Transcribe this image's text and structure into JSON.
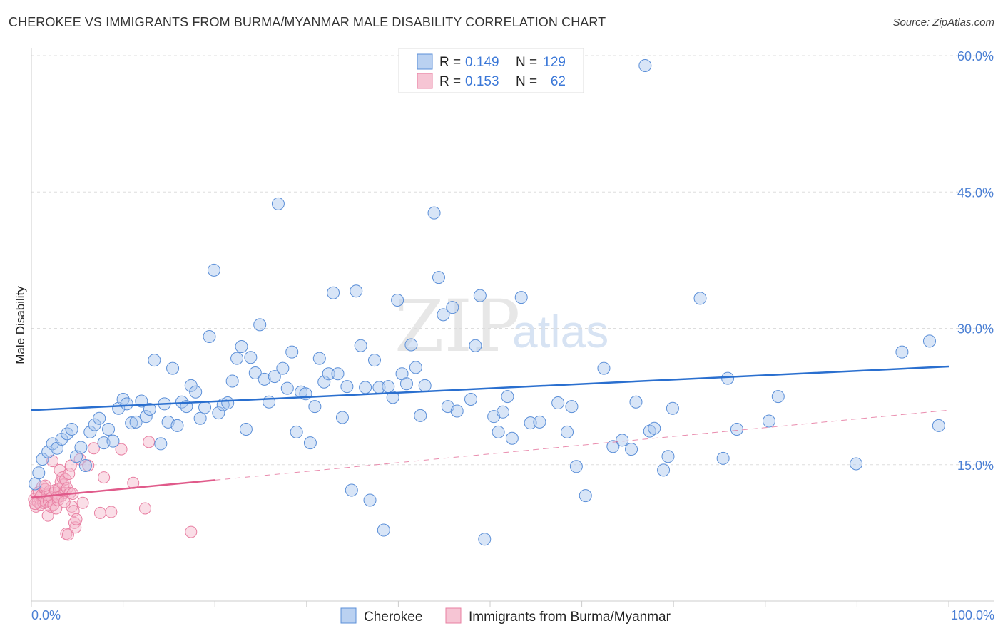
{
  "title": "CHEROKEE VS IMMIGRANTS FROM BURMA/MYANMAR MALE DISABILITY CORRELATION CHART",
  "source": "Source: ZipAtlas.com",
  "watermark": {
    "zip": "ZIP",
    "atlas": "atlas"
  },
  "colors": {
    "blue_fill": "#a9c6ee",
    "blue_stroke": "#5b8fd8",
    "blue_line": "#2a6fcf",
    "pink_fill": "#f4b6c9",
    "pink_stroke": "#e87fa2",
    "pink_line": "#e05a8a",
    "grid": "#dddddd",
    "axis_text": "#4a7fd4"
  },
  "legend": {
    "rows": [
      {
        "r_label": "R =",
        "r_value": "0.149",
        "n_label": "N =",
        "n_value": "129"
      },
      {
        "r_label": "R =",
        "r_value": "0.153",
        "n_label": "N =",
        "n_value": "62"
      }
    ]
  },
  "chart_data": {
    "type": "scatter",
    "title": "CHEROKEE VS IMMIGRANTS FROM BURMA/MYANMAR MALE DISABILITY CORRELATION CHART",
    "xlabel": "",
    "ylabel": "Male Disability",
    "xlim": [
      0,
      100
    ],
    "ylim": [
      0,
      62
    ],
    "x_tick_labels": [
      "0.0%",
      "100.0%"
    ],
    "y_ticks": [
      15,
      30,
      45,
      60
    ],
    "y_tick_labels": [
      "15.0%",
      "30.0%",
      "45.0%",
      "60.0%"
    ],
    "grid": true,
    "legend_position": "top-center",
    "series": [
      {
        "name": "Cherokee",
        "R": 0.149,
        "N": 129,
        "trend": {
          "x": [
            0,
            100
          ],
          "y": [
            21.0,
            25.8
          ]
        },
        "points": [
          [
            0.4,
            12.9
          ],
          [
            0.8,
            14.1
          ],
          [
            1.2,
            15.6
          ],
          [
            1.8,
            16.4
          ],
          [
            2.3,
            17.3
          ],
          [
            2.8,
            16.8
          ],
          [
            3.3,
            17.8
          ],
          [
            3.9,
            18.4
          ],
          [
            4.4,
            18.9
          ],
          [
            4.9,
            15.9
          ],
          [
            5.4,
            16.9
          ],
          [
            5.9,
            14.9
          ],
          [
            6.4,
            18.6
          ],
          [
            6.9,
            19.4
          ],
          [
            7.4,
            20.1
          ],
          [
            7.9,
            17.4
          ],
          [
            8.4,
            18.9
          ],
          [
            8.9,
            17.6
          ],
          [
            9.5,
            21.2
          ],
          [
            10.0,
            22.2
          ],
          [
            10.4,
            21.7
          ],
          [
            10.9,
            19.6
          ],
          [
            11.4,
            19.7
          ],
          [
            12.0,
            22.0
          ],
          [
            12.5,
            20.3
          ],
          [
            12.9,
            21.1
          ],
          [
            13.4,
            26.5
          ],
          [
            14.1,
            17.3
          ],
          [
            14.5,
            21.7
          ],
          [
            14.9,
            19.7
          ],
          [
            15.4,
            25.6
          ],
          [
            15.9,
            19.3
          ],
          [
            16.4,
            21.9
          ],
          [
            16.9,
            21.4
          ],
          [
            17.4,
            23.7
          ],
          [
            17.9,
            23.0
          ],
          [
            18.4,
            20.1
          ],
          [
            18.9,
            21.3
          ],
          [
            19.4,
            29.1
          ],
          [
            19.9,
            36.4
          ],
          [
            20.4,
            20.7
          ],
          [
            20.9,
            21.6
          ],
          [
            21.4,
            21.8
          ],
          [
            21.9,
            24.2
          ],
          [
            22.4,
            26.7
          ],
          [
            22.9,
            28.0
          ],
          [
            23.4,
            18.9
          ],
          [
            23.9,
            26.8
          ],
          [
            24.4,
            25.1
          ],
          [
            24.9,
            30.4
          ],
          [
            25.4,
            24.4
          ],
          [
            25.9,
            21.9
          ],
          [
            26.5,
            24.7
          ],
          [
            26.9,
            43.7
          ],
          [
            27.4,
            25.6
          ],
          [
            27.9,
            23.4
          ],
          [
            28.4,
            27.4
          ],
          [
            28.9,
            18.6
          ],
          [
            29.4,
            23.0
          ],
          [
            29.9,
            22.8
          ],
          [
            30.4,
            17.4
          ],
          [
            30.9,
            21.4
          ],
          [
            31.4,
            26.7
          ],
          [
            31.9,
            24.1
          ],
          [
            32.4,
            25.0
          ],
          [
            32.9,
            33.9
          ],
          [
            33.4,
            25.0
          ],
          [
            33.9,
            20.2
          ],
          [
            34.4,
            23.6
          ],
          [
            34.9,
            12.2
          ],
          [
            35.4,
            34.1
          ],
          [
            35.9,
            28.1
          ],
          [
            36.4,
            23.5
          ],
          [
            36.9,
            11.1
          ],
          [
            37.4,
            26.5
          ],
          [
            37.9,
            23.5
          ],
          [
            38.4,
            7.8
          ],
          [
            38.9,
            23.6
          ],
          [
            39.4,
            22.4
          ],
          [
            39.9,
            33.1
          ],
          [
            40.4,
            25.0
          ],
          [
            40.9,
            23.9
          ],
          [
            41.4,
            28.2
          ],
          [
            41.9,
            25.7
          ],
          [
            42.4,
            20.4
          ],
          [
            42.9,
            23.7
          ],
          [
            43.9,
            42.7
          ],
          [
            44.4,
            35.6
          ],
          [
            44.9,
            31.5
          ],
          [
            45.4,
            21.4
          ],
          [
            45.9,
            32.3
          ],
          [
            46.4,
            20.9
          ],
          [
            47.9,
            22.2
          ],
          [
            48.4,
            28.1
          ],
          [
            48.9,
            33.6
          ],
          [
            49.4,
            6.8
          ],
          [
            50.4,
            20.3
          ],
          [
            50.9,
            18.6
          ],
          [
            51.4,
            20.8
          ],
          [
            51.9,
            22.5
          ],
          [
            52.4,
            17.9
          ],
          [
            53.4,
            33.4
          ],
          [
            54.4,
            19.6
          ],
          [
            55.4,
            19.7
          ],
          [
            57.4,
            21.8
          ],
          [
            58.4,
            18.6
          ],
          [
            58.9,
            21.4
          ],
          [
            59.4,
            14.8
          ],
          [
            60.4,
            11.6
          ],
          [
            62.4,
            25.6
          ],
          [
            63.4,
            17.0
          ],
          [
            64.4,
            17.7
          ],
          [
            65.4,
            16.7
          ],
          [
            65.9,
            21.9
          ],
          [
            66.9,
            58.9
          ],
          [
            67.4,
            18.7
          ],
          [
            67.9,
            19.0
          ],
          [
            68.9,
            14.4
          ],
          [
            69.4,
            15.9
          ],
          [
            69.9,
            21.2
          ],
          [
            72.9,
            33.3
          ],
          [
            75.4,
            15.7
          ],
          [
            75.9,
            24.5
          ],
          [
            76.9,
            18.9
          ],
          [
            80.4,
            19.8
          ],
          [
            81.4,
            22.5
          ],
          [
            89.9,
            15.1
          ],
          [
            94.9,
            27.4
          ],
          [
            97.9,
            28.6
          ],
          [
            98.9,
            19.3
          ]
        ]
      },
      {
        "name": "Immigrants from Burma/Myanmar",
        "R": 0.153,
        "N": 62,
        "trend": {
          "x": [
            0,
            20
          ],
          "y": [
            11.4,
            13.3
          ],
          "dashed_extension": {
            "x": [
              20,
              100
            ],
            "y": [
              13.3,
              21.0
            ]
          }
        },
        "points": [
          [
            0.3,
            11.2
          ],
          [
            0.5,
            10.4
          ],
          [
            0.6,
            11.8
          ],
          [
            0.7,
            10.9
          ],
          [
            0.8,
            12.0
          ],
          [
            0.9,
            11.3
          ],
          [
            1.0,
            10.6
          ],
          [
            1.1,
            11.6
          ],
          [
            1.2,
            12.6
          ],
          [
            1.3,
            10.8
          ],
          [
            1.4,
            11.1
          ],
          [
            1.5,
            12.3
          ],
          [
            1.6,
            10.9
          ],
          [
            1.7,
            11.7
          ],
          [
            1.8,
            9.4
          ],
          [
            1.9,
            11.0
          ],
          [
            2.0,
            12.1
          ],
          [
            2.1,
            10.4
          ],
          [
            2.2,
            11.4
          ],
          [
            2.3,
            15.4
          ],
          [
            2.4,
            10.6
          ],
          [
            2.5,
            11.9
          ],
          [
            2.6,
            12.2
          ],
          [
            2.7,
            10.2
          ],
          [
            2.8,
            11.5
          ],
          [
            2.9,
            11.1
          ],
          [
            3.0,
            12.3
          ],
          [
            3.1,
            14.4
          ],
          [
            3.2,
            13.1
          ],
          [
            3.3,
            11.6
          ],
          [
            3.4,
            13.6
          ],
          [
            3.5,
            12.8
          ],
          [
            3.6,
            11.9
          ],
          [
            3.7,
            13.4
          ],
          [
            3.8,
            7.4
          ],
          [
            3.9,
            12.4
          ],
          [
            4.0,
            7.3
          ],
          [
            4.1,
            14.0
          ],
          [
            4.2,
            11.9
          ],
          [
            4.3,
            14.9
          ],
          [
            4.4,
            10.4
          ],
          [
            4.5,
            11.8
          ],
          [
            4.6,
            9.9
          ],
          [
            4.7,
            8.6
          ],
          [
            4.8,
            8.1
          ],
          [
            4.9,
            9.0
          ],
          [
            5.3,
            15.6
          ],
          [
            5.6,
            10.8
          ],
          [
            6.2,
            14.9
          ],
          [
            6.8,
            16.8
          ],
          [
            7.5,
            9.7
          ],
          [
            7.9,
            13.6
          ],
          [
            8.7,
            9.8
          ],
          [
            9.8,
            16.7
          ],
          [
            11.1,
            13.0
          ],
          [
            12.4,
            10.2
          ],
          [
            12.8,
            17.5
          ],
          [
            17.4,
            7.6
          ],
          [
            0.4,
            10.7
          ],
          [
            1.5,
            12.7
          ],
          [
            2.9,
            11.4
          ],
          [
            3.6,
            10.9
          ]
        ]
      }
    ]
  },
  "bottom_legend": {
    "items": [
      {
        "label": "Cherokee"
      },
      {
        "label": "Immigrants from Burma/Myanmar"
      }
    ]
  }
}
